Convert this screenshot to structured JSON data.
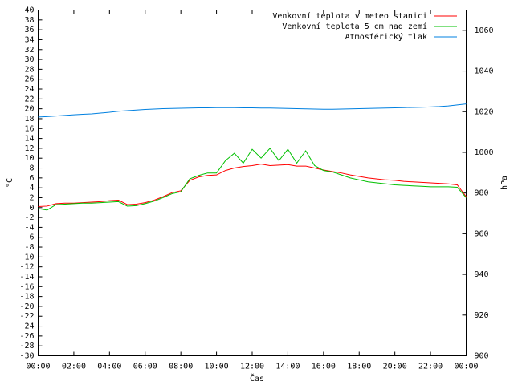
{
  "chart_data": {
    "type": "line",
    "x_label": "Čas",
    "y_label": "°C",
    "y2_label": "hPa",
    "x": [
      0,
      0.5,
      1,
      1.5,
      2,
      2.5,
      3,
      3.5,
      4,
      4.5,
      5,
      5.5,
      6,
      6.5,
      7,
      7.5,
      8,
      8.5,
      9,
      9.5,
      10,
      10.5,
      11,
      11.5,
      12,
      12.5,
      13,
      13.5,
      14,
      14.5,
      15,
      15.5,
      16,
      16.5,
      17,
      17.5,
      18,
      18.5,
      19,
      19.5,
      20,
      20.5,
      21,
      21.5,
      22,
      22.5,
      23,
      23.5,
      24
    ],
    "series": [
      {
        "name": "Venkovní teplota v meteo stanici",
        "color": "#ff0000",
        "values": [
          0.2,
          0.3,
          0.8,
          0.9,
          0.9,
          1.0,
          1.1,
          1.2,
          1.4,
          1.5,
          0.6,
          0.7,
          1.0,
          1.5,
          2.2,
          3.0,
          3.4,
          5.5,
          6.2,
          6.5,
          6.6,
          7.5,
          8.0,
          8.3,
          8.5,
          8.8,
          8.5,
          8.6,
          8.7,
          8.4,
          8.4,
          8.0,
          7.6,
          7.3,
          7.0,
          6.6,
          6.3,
          6.0,
          5.8,
          5.6,
          5.5,
          5.3,
          5.2,
          5.1,
          5.0,
          4.9,
          4.8,
          4.6,
          2.2
        ]
      },
      {
        "name": "Venkovní teplota 5 cm nad zemí",
        "color": "#00c000",
        "values": [
          -0.2,
          -0.5,
          0.6,
          0.7,
          0.8,
          0.9,
          0.9,
          1.0,
          1.1,
          1.2,
          0.3,
          0.4,
          0.8,
          1.3,
          2.0,
          2.8,
          3.2,
          5.8,
          6.5,
          7.0,
          7.0,
          9.5,
          11.0,
          9.0,
          11.8,
          10.0,
          12.0,
          9.5,
          11.8,
          9.0,
          11.5,
          8.5,
          7.5,
          7.2,
          6.6,
          6.0,
          5.6,
          5.2,
          5.0,
          4.8,
          4.6,
          4.5,
          4.4,
          4.3,
          4.2,
          4.2,
          4.2,
          4.1,
          2.0
        ]
      },
      {
        "name": "Atmosférický tlak",
        "color": "#0080e0",
        "axis": "y2",
        "values": [
          1017.4,
          1017.6,
          1017.9,
          1018.2,
          1018.5,
          1018.7,
          1018.9,
          1019.3,
          1019.7,
          1020.2,
          1020.5,
          1020.8,
          1021.1,
          1021.3,
          1021.5,
          1021.6,
          1021.7,
          1021.8,
          1021.9,
          1021.9,
          1022.0,
          1022.0,
          1022.0,
          1021.9,
          1021.9,
          1021.8,
          1021.8,
          1021.7,
          1021.6,
          1021.5,
          1021.4,
          1021.3,
          1021.2,
          1021.2,
          1021.3,
          1021.4,
          1021.5,
          1021.6,
          1021.7,
          1021.8,
          1021.9,
          1022.0,
          1022.1,
          1022.2,
          1022.3,
          1022.5,
          1022.8,
          1023.3,
          1023.8
        ]
      }
    ],
    "xlim": [
      0,
      24
    ],
    "xticks": [
      {
        "value": 0,
        "label": "00:00"
      },
      {
        "value": 2,
        "label": "02:00"
      },
      {
        "value": 4,
        "label": "04:00"
      },
      {
        "value": 6,
        "label": "06:00"
      },
      {
        "value": 8,
        "label": "08:00"
      },
      {
        "value": 10,
        "label": "10:00"
      },
      {
        "value": 12,
        "label": "12:00"
      },
      {
        "value": 14,
        "label": "14:00"
      },
      {
        "value": 16,
        "label": "16:00"
      },
      {
        "value": 18,
        "label": "18:00"
      },
      {
        "value": 20,
        "label": "20:00"
      },
      {
        "value": 22,
        "label": "22:00"
      },
      {
        "value": 24,
        "label": "00:00"
      }
    ],
    "ylim": [
      -30,
      40
    ],
    "yticks": [
      -30,
      -28,
      -26,
      -24,
      -22,
      -20,
      -18,
      -16,
      -14,
      -12,
      -10,
      -8,
      -6,
      -4,
      -2,
      0,
      2,
      4,
      6,
      8,
      10,
      12,
      14,
      16,
      18,
      20,
      22,
      24,
      26,
      28,
      30,
      32,
      34,
      36,
      38,
      40
    ],
    "y2lim": [
      900,
      1070
    ],
    "y2ticks": [
      900,
      920,
      940,
      960,
      980,
      1000,
      1020,
      1040,
      1060
    ],
    "legend": "upper right"
  }
}
